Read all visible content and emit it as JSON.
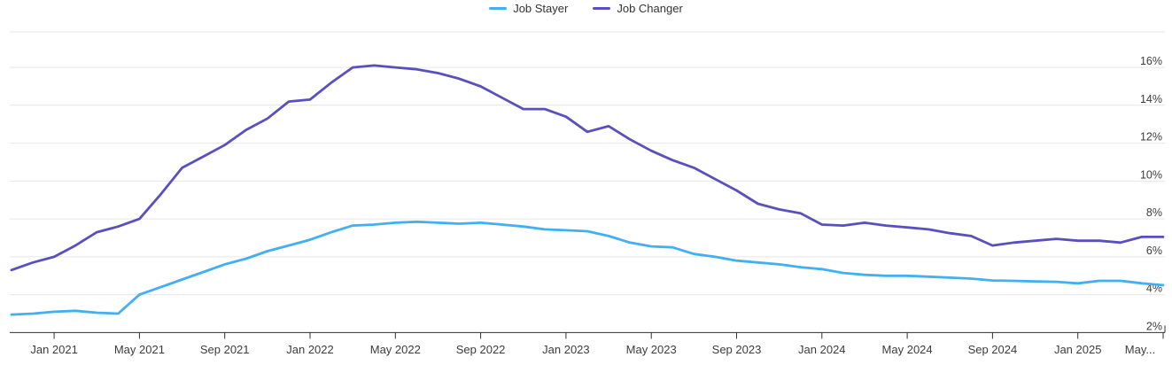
{
  "colors": {
    "background": "#ffffff",
    "gridline": "#e6e6e6",
    "axis_line": "#2f2f2f",
    "label_text": "#3c3c3c",
    "legend_text": "#333333",
    "job_stayer": "#42b0f0",
    "job_changer": "#5950be"
  },
  "chart_data": {
    "type": "line",
    "title": "",
    "xlabel": "",
    "ylabel": "",
    "legend_position": "top-center",
    "grid": true,
    "ylim": [
      2,
      18
    ],
    "y_tick_values": [
      2,
      4,
      6,
      8,
      10,
      12,
      14,
      16
    ],
    "y_tick_labels": [
      "2%",
      "4%",
      "6%",
      "8%",
      "10%",
      "12%",
      "14%",
      "16%"
    ],
    "x": [
      "Nov 2020",
      "Dec 2020",
      "Jan 2021",
      "Feb 2021",
      "Mar 2021",
      "Apr 2021",
      "May 2021",
      "Jun 2021",
      "Jul 2021",
      "Aug 2021",
      "Sep 2021",
      "Oct 2021",
      "Nov 2021",
      "Dec 2021",
      "Jan 2022",
      "Feb 2022",
      "Mar 2022",
      "Apr 2022",
      "May 2022",
      "Jun 2022",
      "Jul 2022",
      "Aug 2022",
      "Sep 2022",
      "Oct 2022",
      "Nov 2022",
      "Dec 2022",
      "Jan 2023",
      "Feb 2023",
      "Mar 2023",
      "Apr 2023",
      "May 2023",
      "Jun 2023",
      "Jul 2023",
      "Aug 2023",
      "Sep 2023",
      "Oct 2023",
      "Nov 2023",
      "Dec 2023",
      "Jan 2024",
      "Feb 2024",
      "Mar 2024",
      "Apr 2024",
      "May 2024",
      "Jun 2024",
      "Jul 2024",
      "Aug 2024",
      "Sep 2024",
      "Oct 2024",
      "Nov 2024",
      "Dec 2024",
      "Jan 2025",
      "Feb 2025",
      "Mar 2025",
      "Apr 2025",
      "May 2025"
    ],
    "x_tick_indices": [
      2,
      6,
      10,
      14,
      18,
      22,
      26,
      30,
      34,
      38,
      42,
      46,
      50,
      54
    ],
    "x_tick_labels": [
      "Jan 2021",
      "May 2021",
      "Sep 2021",
      "Jan 2022",
      "May 2022",
      "Sep 2022",
      "Jan 2023",
      "May 2023",
      "Sep 2023",
      "Jan 2024",
      "May 2024",
      "Sep 2024",
      "Jan 2025",
      "May..."
    ],
    "series": [
      {
        "name": "Job Stayer",
        "color": "#42b0f0",
        "values": [
          2.95,
          3.0,
          3.1,
          3.15,
          3.05,
          3.0,
          4.0,
          4.4,
          4.8,
          5.2,
          5.6,
          5.9,
          6.3,
          6.6,
          6.9,
          7.3,
          7.65,
          7.7,
          7.8,
          7.85,
          7.8,
          7.75,
          7.8,
          7.7,
          7.6,
          7.45,
          7.4,
          7.35,
          7.1,
          6.75,
          6.55,
          6.5,
          6.15,
          6.0,
          5.8,
          5.7,
          5.6,
          5.45,
          5.35,
          5.15,
          5.05,
          5.0,
          5.0,
          4.95,
          4.9,
          4.85,
          4.75,
          4.73,
          4.7,
          4.68,
          4.6,
          4.73,
          4.73,
          4.6,
          4.5
        ]
      },
      {
        "name": "Job Changer",
        "color": "#5950be",
        "values": [
          5.3,
          5.7,
          6.0,
          6.6,
          7.3,
          7.6,
          8.0,
          9.3,
          10.7,
          11.3,
          11.9,
          12.7,
          13.3,
          14.2,
          14.3,
          15.2,
          16.0,
          16.1,
          16.0,
          15.9,
          15.7,
          15.4,
          15.0,
          14.4,
          13.8,
          13.8,
          13.4,
          12.6,
          12.9,
          12.2,
          11.6,
          11.1,
          10.7,
          10.1,
          9.5,
          8.8,
          8.5,
          8.3,
          7.7,
          7.65,
          7.8,
          7.65,
          7.55,
          7.45,
          7.25,
          7.1,
          6.6,
          6.75,
          6.85,
          6.95,
          6.85,
          6.85,
          6.75,
          7.05,
          7.05
        ]
      }
    ]
  }
}
